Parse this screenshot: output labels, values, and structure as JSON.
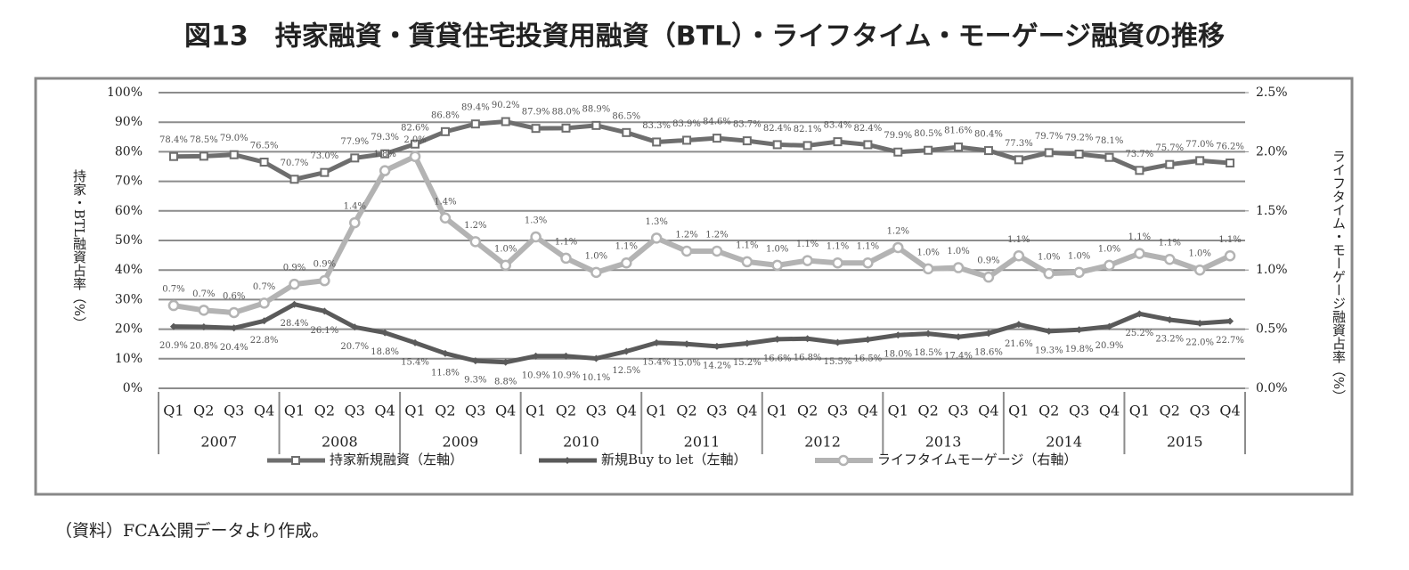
{
  "chart_data": {
    "type": "line",
    "title": "図13　持家融資・賃貸住宅投資用融資（BTL）・ライフタイム・モーゲージ融資の推移",
    "y_label": "持家・BTL融資占率（%）",
    "y2_label": "ライフタイム・モーゲージ融資占率（%）",
    "source": "（資料）FCA公開データより作成。",
    "categories": [
      "Q1",
      "Q2",
      "Q3",
      "Q4",
      "Q1",
      "Q2",
      "Q3",
      "Q4",
      "Q1",
      "Q2",
      "Q3",
      "Q4",
      "Q1",
      "Q2",
      "Q3",
      "Q4",
      "Q1",
      "Q2",
      "Q3",
      "Q4",
      "Q1",
      "Q2",
      "Q3",
      "Q4",
      "Q1",
      "Q2",
      "Q3",
      "Q4",
      "Q1",
      "Q2",
      "Q3",
      "Q4",
      "Q1",
      "Q2",
      "Q3",
      "Q4"
    ],
    "category_groups": [
      "2007",
      "2008",
      "2009",
      "2010",
      "2011",
      "2012",
      "2013",
      "2014",
      "2015"
    ],
    "ylim": [
      0,
      100
    ],
    "yticks": [
      {
        "value": 0,
        "label": "0%"
      },
      {
        "value": 10,
        "label": "10%"
      },
      {
        "value": 20,
        "label": "20%"
      },
      {
        "value": 30,
        "label": "30%"
      },
      {
        "value": 40,
        "label": "40%"
      },
      {
        "value": 50,
        "label": "50%"
      },
      {
        "value": 60,
        "label": "60%"
      },
      {
        "value": 70,
        "label": "70%"
      },
      {
        "value": 80,
        "label": "80%"
      },
      {
        "value": 90,
        "label": "90%"
      },
      {
        "value": 100,
        "label": "100%"
      }
    ],
    "y2lim": [
      0,
      2.5
    ],
    "y2ticks": [
      {
        "value": 0,
        "label": "0.0%"
      },
      {
        "value": 0.5,
        "label": "0.5%"
      },
      {
        "value": 1,
        "label": "1.0%"
      },
      {
        "value": 1.5,
        "label": "1.5%"
      },
      {
        "value": 2,
        "label": "2.0%"
      },
      {
        "value": 2.5,
        "label": "2.5%"
      }
    ],
    "grid": true,
    "legend": "bottom",
    "series": [
      {
        "name": "持家新規融資（左軸）",
        "color": "#6e6e6e",
        "marker": "square",
        "axis": "y",
        "values": [
          78.4,
          78.5,
          79.0,
          76.5,
          70.7,
          73.0,
          77.9,
          79.3,
          82.6,
          86.8,
          89.4,
          90.2,
          87.9,
          88.0,
          88.9,
          86.5,
          83.3,
          83.9,
          84.6,
          83.7,
          82.4,
          82.1,
          83.4,
          82.4,
          79.9,
          80.5,
          81.6,
          80.4,
          77.3,
          79.7,
          79.2,
          78.1,
          73.7,
          75.7,
          77.0,
          76.2
        ],
        "value_labels": [
          "78.4%",
          "78.5%",
          "79.0%",
          "76.5%",
          "70.7%",
          "73.0%",
          "77.9%",
          "79.3%",
          "82.6%",
          "86.8%",
          "89.4%",
          "90.2%",
          "87.9%",
          "88.0%",
          "88.9%",
          "86.5%",
          "83.3%",
          "83.9%",
          "84.6%",
          "83.7%",
          "82.4%",
          "82.1%",
          "83.4%",
          "82.4%",
          "79.9%",
          "80.5%",
          "81.6%",
          "80.4%",
          "77.3%",
          "79.7%",
          "79.2%",
          "78.1%",
          "73.7%",
          "75.7%",
          "77.0%",
          "76.2%"
        ]
      },
      {
        "name": "新規Buy to let（左軸）",
        "color": "#5a5a5a",
        "marker": "diamond",
        "axis": "y",
        "values": [
          20.9,
          20.8,
          20.4,
          22.8,
          28.4,
          26.1,
          20.7,
          18.8,
          15.4,
          11.8,
          9.3,
          8.8,
          10.9,
          10.9,
          10.1,
          12.5,
          15.4,
          15.0,
          14.2,
          15.2,
          16.6,
          16.8,
          15.5,
          16.5,
          18.0,
          18.5,
          17.4,
          18.6,
          21.6,
          19.3,
          19.8,
          20.9,
          25.2,
          23.2,
          22.0,
          22.7
        ],
        "value_labels": [
          "20.9%",
          "20.8%",
          "20.4%",
          "22.8%",
          "28.4%",
          "26.1%",
          "20.7%",
          "18.8%",
          "15.4%",
          "11.8%",
          "9.3%",
          "8.8%",
          "10.9%",
          "10.9%",
          "10.1%",
          "12.5%",
          "15.4%",
          "15.0%",
          "14.2%",
          "15.2%",
          "16.6%",
          "16.8%",
          "15.5%",
          "16.5%",
          "18.0%",
          "18.5%",
          "17.4%",
          "18.6%",
          "21.6%",
          "19.3%",
          "19.8%",
          "20.9%",
          "25.2%",
          "23.2%",
          "22.0%",
          "22.7%"
        ]
      },
      {
        "name": "ライフタイムモーゲージ（右軸）",
        "color": "#b3b3b3",
        "marker": "circle",
        "axis": "y2",
        "values": [
          0.7,
          0.66,
          0.64,
          0.72,
          0.88,
          0.91,
          1.4,
          1.84,
          1.96,
          1.44,
          1.24,
          1.04,
          1.28,
          1.1,
          0.98,
          1.06,
          1.27,
          1.16,
          1.16,
          1.07,
          1.04,
          1.08,
          1.06,
          1.06,
          1.19,
          1.01,
          1.02,
          0.94,
          1.12,
          0.97,
          0.98,
          1.04,
          1.14,
          1.09,
          1.0,
          1.12
        ],
        "value_labels": [
          "0.7%",
          "0.7%",
          "0.6%",
          "0.7%",
          "0.9%",
          "0.9%",
          "1.4%",
          "1.8%",
          "2.0%",
          "1.4%",
          "1.2%",
          "1.0%",
          "1.3%",
          "1.1%",
          "1.0%",
          "1.1%",
          "1.3%",
          "1.2%",
          "1.2%",
          "1.1%",
          "1.0%",
          "1.1%",
          "1.1%",
          "1.1%",
          "1.2%",
          "1.0%",
          "1.0%",
          "0.9%",
          "1.1%",
          "1.0%",
          "1.0%",
          "1.0%",
          "1.1%",
          "1.1%",
          "1.0%",
          "1.1%"
        ]
      }
    ]
  }
}
